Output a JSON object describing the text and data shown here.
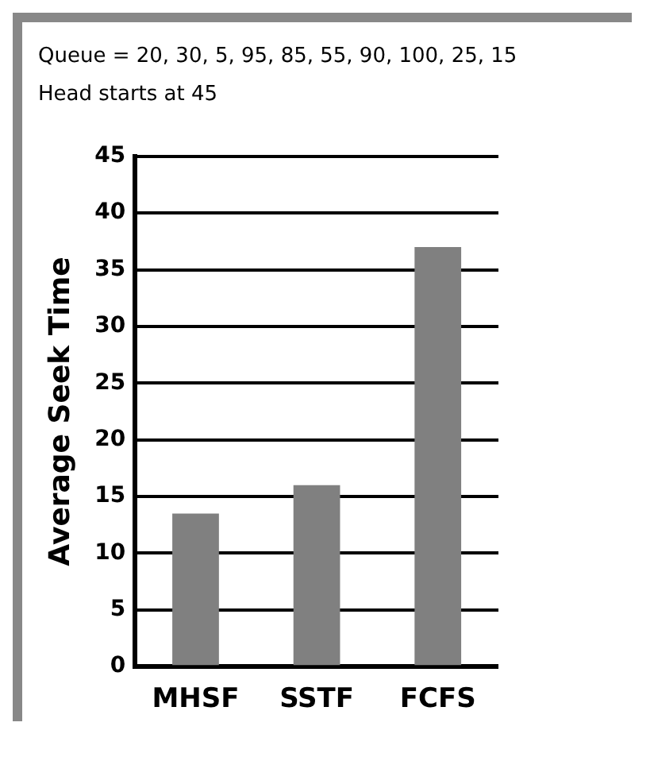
{
  "chart_data": {
    "type": "bar",
    "ylabel": "Average Seek Time",
    "annotations": [
      "Queue = 20, 30, 5, 95, 85, 55, 90, 100, 25, 15",
      "Head starts at 45"
    ],
    "categories": [
      "MHSF",
      "SSTF",
      "FCFS"
    ],
    "values": [
      13.5,
      16,
      37
    ],
    "color": "#808080",
    "ylim": [
      0,
      45
    ],
    "yticks": [
      0,
      5,
      10,
      15,
      20,
      25,
      30,
      35,
      40,
      45
    ],
    "grid": "y"
  }
}
